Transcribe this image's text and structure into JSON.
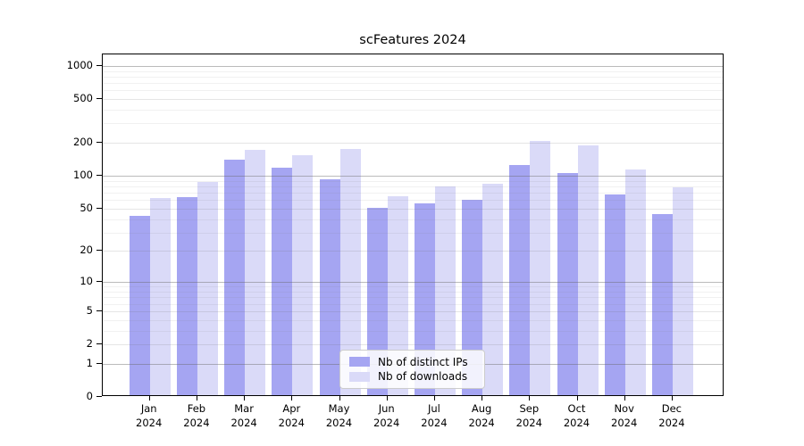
{
  "chart_data": {
    "type": "bar",
    "title": "scFeatures 2024",
    "categories": [
      {
        "month": "Jan",
        "year": "2024"
      },
      {
        "month": "Feb",
        "year": "2024"
      },
      {
        "month": "Mar",
        "year": "2024"
      },
      {
        "month": "Apr",
        "year": "2024"
      },
      {
        "month": "May",
        "year": "2024"
      },
      {
        "month": "Jun",
        "year": "2024"
      },
      {
        "month": "Jul",
        "year": "2024"
      },
      {
        "month": "Aug",
        "year": "2024"
      },
      {
        "month": "Sep",
        "year": "2024"
      },
      {
        "month": "Oct",
        "year": "2024"
      },
      {
        "month": "Nov",
        "year": "2024"
      },
      {
        "month": "Dec",
        "year": "2024"
      }
    ],
    "series": [
      {
        "name": "Nb of distinct IPs",
        "color": "#a5a5f2",
        "values": [
          41,
          61,
          135,
          115,
          89,
          49,
          54,
          58,
          122,
          102,
          65,
          43
        ]
      },
      {
        "name": "Nb of downloads",
        "color": "#dadaf8",
        "values": [
          60,
          85,
          166,
          149,
          168,
          63,
          77,
          82,
          200,
          184,
          111,
          76
        ]
      }
    ],
    "yscale": "log1p",
    "yticks": [
      {
        "label": "1000",
        "value": 1000
      },
      {
        "label": "500",
        "value": 500
      },
      {
        "label": "200",
        "value": 200
      },
      {
        "label": "100",
        "value": 100
      },
      {
        "label": "50",
        "value": 50
      },
      {
        "label": "20",
        "value": 20
      },
      {
        "label": "10",
        "value": 10
      },
      {
        "label": "5",
        "value": 5
      },
      {
        "label": "2",
        "value": 2
      },
      {
        "label": "1",
        "value": 1
      },
      {
        "label": "0",
        "value": 0
      }
    ],
    "grid": "on",
    "legend_position": "lower center",
    "colors": {
      "axis": "#000000",
      "grid_major": "#b0b0b0",
      "grid_minor": "#ececec",
      "legend_border": "#cccccc",
      "background": "#ffffff"
    }
  }
}
